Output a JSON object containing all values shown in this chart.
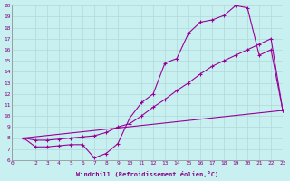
{
  "xlabel": "Windchill (Refroidissement éolien,°C)",
  "bg_color": "#c8f0f0",
  "grid_color": "#b0d8d8",
  "line_color": "#990099",
  "xlim": [
    0,
    23
  ],
  "ylim": [
    6,
    20
  ],
  "xticks": [
    0,
    2,
    3,
    4,
    5,
    6,
    7,
    8,
    9,
    10,
    11,
    12,
    13,
    14,
    15,
    16,
    17,
    18,
    19,
    20,
    21,
    22,
    23
  ],
  "yticks": [
    6,
    7,
    8,
    9,
    10,
    11,
    12,
    13,
    14,
    15,
    16,
    17,
    18,
    19,
    20
  ],
  "line1_x": [
    1,
    2,
    3,
    4,
    5,
    6,
    7,
    8,
    9,
    10,
    11,
    12,
    13,
    14,
    15,
    16,
    17,
    18,
    19,
    20,
    21,
    22,
    23
  ],
  "line1_y": [
    8,
    7.2,
    7.2,
    7.3,
    7.4,
    7.4,
    6.2,
    6.6,
    7.5,
    9.8,
    11.2,
    12.0,
    14.8,
    15.2,
    17.5,
    18.5,
    18.7,
    19.1,
    20.0,
    19.8,
    15.5,
    16.0,
    10.5
  ],
  "line2_x": [
    1,
    2,
    3,
    4,
    5,
    6,
    7,
    8,
    9,
    10,
    11,
    12,
    13,
    14,
    15,
    16,
    17,
    18,
    19,
    20,
    21,
    22,
    23
  ],
  "line2_y": [
    8,
    7.8,
    7.8,
    7.9,
    8.0,
    8.1,
    8.2,
    8.5,
    9.0,
    9.3,
    10.0,
    10.8,
    11.5,
    12.3,
    13.0,
    13.8,
    14.5,
    15.0,
    15.5,
    16.0,
    16.5,
    17.0,
    10.5
  ],
  "line3_x": [
    1,
    23
  ],
  "line3_y": [
    8,
    10.5
  ]
}
